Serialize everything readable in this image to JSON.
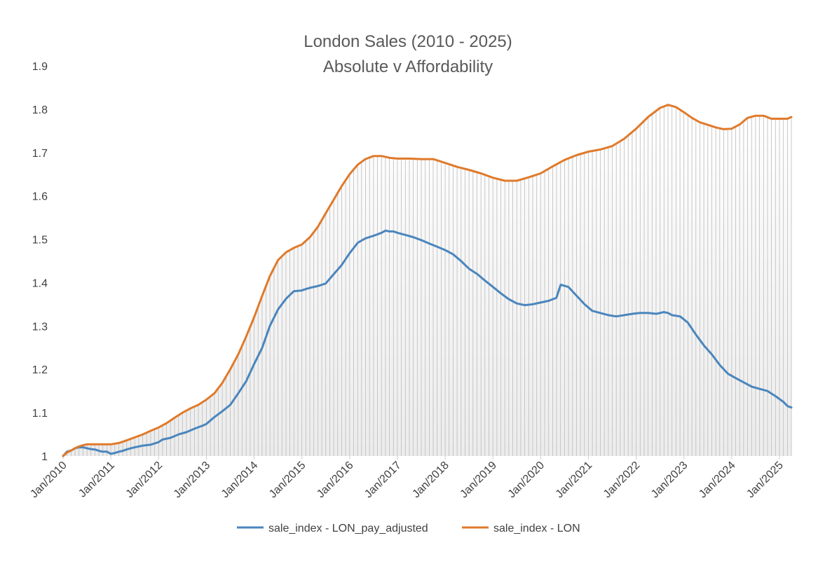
{
  "chart_data": {
    "type": "line",
    "title": "London Sales (2010 - 2025)",
    "subtitle": "Absolute v Affordability",
    "ylim": [
      1.0,
      1.9
    ],
    "yticks": [
      "1",
      "1.1",
      "1.2",
      "1.3",
      "1.4",
      "1.5",
      "1.6",
      "1.7",
      "1.8",
      "1.9"
    ],
    "xlim": [
      2010.0,
      2025.0
    ],
    "xticks": [
      "Jan/2010",
      "Jan/2011",
      "Jan/2012",
      "Jan/2013",
      "Jan/2014",
      "Jan/2015",
      "Jan/2016",
      "Jan/2017",
      "Jan/2018",
      "Jan/2019",
      "Jan/2020",
      "Jan/2021",
      "Jan/2022",
      "Jan/2023",
      "Jan/2024",
      "Jan/2025"
    ],
    "grid": false,
    "area_fill": "vertical drop-lines between the upper series and the x-axis",
    "legend_position": "bottom",
    "series": [
      {
        "name": "sale_index - LON_pay_adjusted",
        "color": "#4a86bd",
        "points": [
          [
            2010.0,
            1.0
          ],
          [
            2010.08,
            1.01
          ],
          [
            2010.17,
            1.013
          ],
          [
            2010.25,
            1.018
          ],
          [
            2010.33,
            1.02
          ],
          [
            2010.42,
            1.02
          ],
          [
            2010.5,
            1.018
          ],
          [
            2010.58,
            1.016
          ],
          [
            2010.67,
            1.015
          ],
          [
            2010.75,
            1.012
          ],
          [
            2010.83,
            1.01
          ],
          [
            2010.92,
            1.01
          ],
          [
            2011.0,
            1.005
          ],
          [
            2011.08,
            1.007
          ],
          [
            2011.17,
            1.01
          ],
          [
            2011.25,
            1.012
          ],
          [
            2011.33,
            1.015
          ],
          [
            2011.42,
            1.018
          ],
          [
            2011.5,
            1.02
          ],
          [
            2011.67,
            1.024
          ],
          [
            2011.83,
            1.026
          ],
          [
            2012.0,
            1.032
          ],
          [
            2012.08,
            1.038
          ],
          [
            2012.25,
            1.042
          ],
          [
            2012.42,
            1.05
          ],
          [
            2012.58,
            1.055
          ],
          [
            2012.75,
            1.063
          ],
          [
            2012.92,
            1.07
          ],
          [
            2013.0,
            1.074
          ],
          [
            2013.17,
            1.09
          ],
          [
            2013.33,
            1.103
          ],
          [
            2013.5,
            1.118
          ],
          [
            2013.67,
            1.145
          ],
          [
            2013.83,
            1.172
          ],
          [
            2014.0,
            1.212
          ],
          [
            2014.17,
            1.25
          ],
          [
            2014.33,
            1.3
          ],
          [
            2014.5,
            1.338
          ],
          [
            2014.67,
            1.363
          ],
          [
            2014.83,
            1.38
          ],
          [
            2015.0,
            1.382
          ],
          [
            2015.08,
            1.385
          ],
          [
            2015.17,
            1.388
          ],
          [
            2015.33,
            1.392
          ],
          [
            2015.5,
            1.398
          ],
          [
            2015.67,
            1.42
          ],
          [
            2015.83,
            1.44
          ],
          [
            2016.0,
            1.468
          ],
          [
            2016.17,
            1.492
          ],
          [
            2016.33,
            1.502
          ],
          [
            2016.5,
            1.508
          ],
          [
            2016.67,
            1.515
          ],
          [
            2016.75,
            1.52
          ],
          [
            2016.83,
            1.518
          ],
          [
            2016.92,
            1.518
          ],
          [
            2017.0,
            1.515
          ],
          [
            2017.17,
            1.51
          ],
          [
            2017.33,
            1.505
          ],
          [
            2017.5,
            1.498
          ],
          [
            2017.67,
            1.49
          ],
          [
            2017.83,
            1.483
          ],
          [
            2018.0,
            1.475
          ],
          [
            2018.17,
            1.465
          ],
          [
            2018.33,
            1.45
          ],
          [
            2018.5,
            1.432
          ],
          [
            2018.67,
            1.42
          ],
          [
            2018.83,
            1.405
          ],
          [
            2019.0,
            1.39
          ],
          [
            2019.17,
            1.375
          ],
          [
            2019.33,
            1.362
          ],
          [
            2019.5,
            1.352
          ],
          [
            2019.67,
            1.348
          ],
          [
            2019.83,
            1.35
          ],
          [
            2020.0,
            1.354
          ],
          [
            2020.17,
            1.358
          ],
          [
            2020.33,
            1.365
          ],
          [
            2020.42,
            1.395
          ],
          [
            2020.58,
            1.39
          ],
          [
            2020.75,
            1.37
          ],
          [
            2020.92,
            1.35
          ],
          [
            2021.08,
            1.335
          ],
          [
            2021.25,
            1.33
          ],
          [
            2021.42,
            1.325
          ],
          [
            2021.58,
            1.322
          ],
          [
            2021.75,
            1.325
          ],
          [
            2021.92,
            1.328
          ],
          [
            2022.08,
            1.33
          ],
          [
            2022.25,
            1.33
          ],
          [
            2022.42,
            1.328
          ],
          [
            2022.5,
            1.33
          ],
          [
            2022.58,
            1.332
          ],
          [
            2022.67,
            1.33
          ],
          [
            2022.75,
            1.325
          ],
          [
            2022.92,
            1.322
          ],
          [
            2023.08,
            1.308
          ],
          [
            2023.25,
            1.28
          ],
          [
            2023.42,
            1.255
          ],
          [
            2023.58,
            1.235
          ],
          [
            2023.75,
            1.21
          ],
          [
            2023.92,
            1.19
          ],
          [
            2024.08,
            1.18
          ],
          [
            2024.25,
            1.17
          ],
          [
            2024.42,
            1.16
          ],
          [
            2024.58,
            1.155
          ],
          [
            2024.75,
            1.15
          ],
          [
            2024.92,
            1.138
          ],
          [
            2025.08,
            1.125
          ],
          [
            2025.17,
            1.115
          ],
          [
            2025.25,
            1.112
          ]
        ]
      },
      {
        "name": "sale_index - LON",
        "color": "#e07a2b",
        "points": [
          [
            2010.0,
            1.0
          ],
          [
            2010.08,
            1.008
          ],
          [
            2010.17,
            1.013
          ],
          [
            2010.25,
            1.018
          ],
          [
            2010.33,
            1.022
          ],
          [
            2010.42,
            1.025
          ],
          [
            2010.5,
            1.027
          ],
          [
            2010.67,
            1.027
          ],
          [
            2010.83,
            1.027
          ],
          [
            2011.0,
            1.027
          ],
          [
            2011.17,
            1.03
          ],
          [
            2011.33,
            1.036
          ],
          [
            2011.5,
            1.043
          ],
          [
            2011.67,
            1.05
          ],
          [
            2011.83,
            1.058
          ],
          [
            2012.0,
            1.066
          ],
          [
            2012.17,
            1.076
          ],
          [
            2012.33,
            1.088
          ],
          [
            2012.5,
            1.1
          ],
          [
            2012.67,
            1.11
          ],
          [
            2012.83,
            1.118
          ],
          [
            2013.0,
            1.13
          ],
          [
            2013.17,
            1.145
          ],
          [
            2013.33,
            1.168
          ],
          [
            2013.5,
            1.2
          ],
          [
            2013.67,
            1.235
          ],
          [
            2013.83,
            1.275
          ],
          [
            2014.0,
            1.32
          ],
          [
            2014.17,
            1.37
          ],
          [
            2014.33,
            1.415
          ],
          [
            2014.5,
            1.452
          ],
          [
            2014.67,
            1.47
          ],
          [
            2014.83,
            1.48
          ],
          [
            2015.0,
            1.488
          ],
          [
            2015.17,
            1.505
          ],
          [
            2015.33,
            1.528
          ],
          [
            2015.5,
            1.56
          ],
          [
            2015.67,
            1.592
          ],
          [
            2015.83,
            1.622
          ],
          [
            2016.0,
            1.65
          ],
          [
            2016.17,
            1.672
          ],
          [
            2016.33,
            1.685
          ],
          [
            2016.5,
            1.692
          ],
          [
            2016.67,
            1.692
          ],
          [
            2016.83,
            1.688
          ],
          [
            2017.0,
            1.686
          ],
          [
            2017.25,
            1.686
          ],
          [
            2017.5,
            1.685
          ],
          [
            2017.75,
            1.685
          ],
          [
            2018.0,
            1.676
          ],
          [
            2018.25,
            1.667
          ],
          [
            2018.5,
            1.66
          ],
          [
            2018.75,
            1.652
          ],
          [
            2019.0,
            1.642
          ],
          [
            2019.25,
            1.635
          ],
          [
            2019.5,
            1.635
          ],
          [
            2019.75,
            1.643
          ],
          [
            2020.0,
            1.652
          ],
          [
            2020.25,
            1.668
          ],
          [
            2020.5,
            1.683
          ],
          [
            2020.75,
            1.694
          ],
          [
            2021.0,
            1.702
          ],
          [
            2021.25,
            1.707
          ],
          [
            2021.5,
            1.715
          ],
          [
            2021.75,
            1.732
          ],
          [
            2022.0,
            1.755
          ],
          [
            2022.25,
            1.782
          ],
          [
            2022.5,
            1.803
          ],
          [
            2022.67,
            1.81
          ],
          [
            2022.83,
            1.805
          ],
          [
            2023.0,
            1.793
          ],
          [
            2023.17,
            1.78
          ],
          [
            2023.33,
            1.77
          ],
          [
            2023.5,
            1.764
          ],
          [
            2023.67,
            1.758
          ],
          [
            2023.83,
            1.754
          ],
          [
            2024.0,
            1.755
          ],
          [
            2024.17,
            1.765
          ],
          [
            2024.33,
            1.78
          ],
          [
            2024.5,
            1.785
          ],
          [
            2024.67,
            1.785
          ],
          [
            2024.83,
            1.778
          ],
          [
            2025.0,
            1.778
          ],
          [
            2025.17,
            1.778
          ],
          [
            2025.25,
            1.782
          ]
        ]
      }
    ]
  }
}
